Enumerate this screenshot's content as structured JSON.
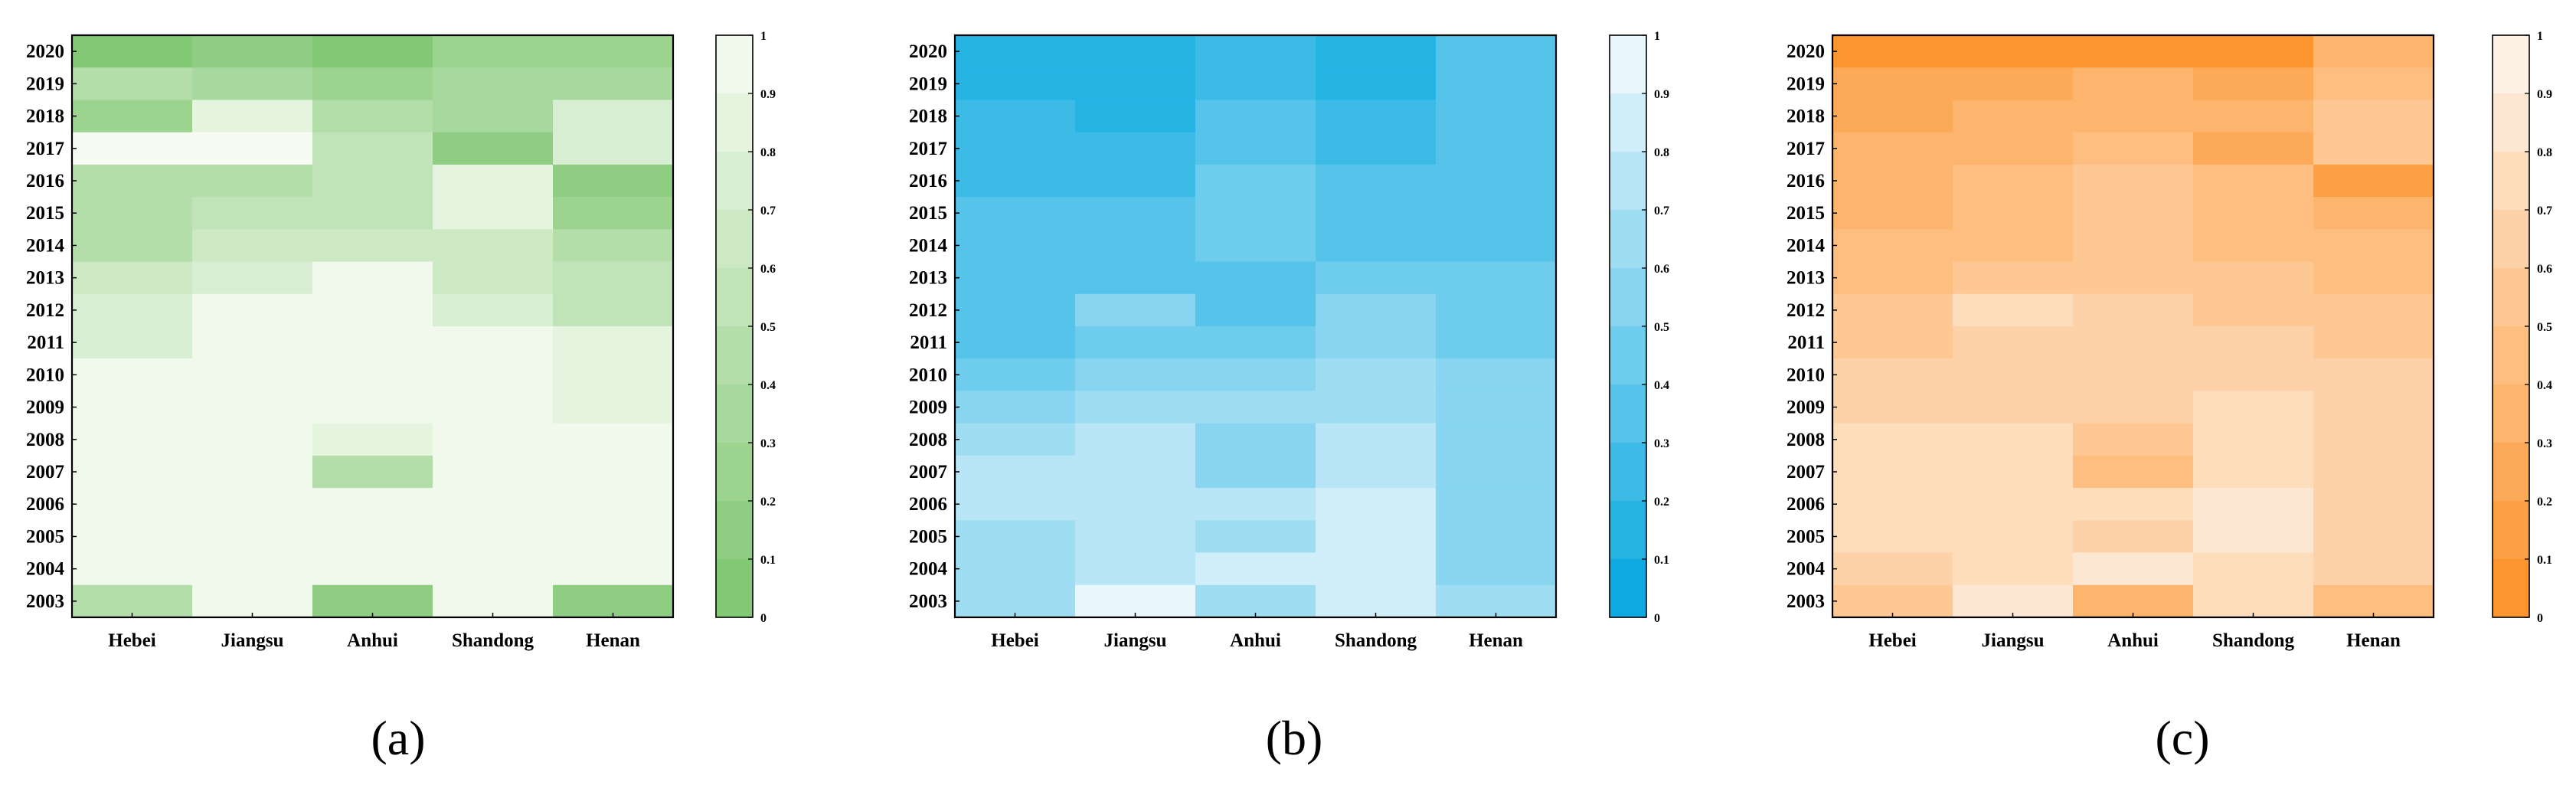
{
  "charts": [
    {
      "type": "heatmap",
      "panel_label": "(a)",
      "colormap": "greens",
      "colorscale": [
        "#7cc56e",
        "#f7fcf3"
      ],
      "x": [
        "Hebei",
        "Jiangsu",
        "Anhui",
        "Shandong",
        "Henan"
      ],
      "y": [
        "2020",
        "2019",
        "2018",
        "2017",
        "2016",
        "2015",
        "2014",
        "2013",
        "2012",
        "2011",
        "2010",
        "2009",
        "2008",
        "2007",
        "2006",
        "2005",
        "2004",
        "2003"
      ],
      "values": [
        [
          0.05,
          0.15,
          0.05,
          0.25,
          0.25
        ],
        [
          0.45,
          0.35,
          0.25,
          0.35,
          0.35
        ],
        [
          0.25,
          0.85,
          0.45,
          0.35,
          0.75
        ],
        [
          1.0,
          1.0,
          0.55,
          0.15,
          0.75
        ],
        [
          0.45,
          0.45,
          0.55,
          0.85,
          0.15
        ],
        [
          0.45,
          0.55,
          0.55,
          0.85,
          0.25
        ],
        [
          0.45,
          0.65,
          0.65,
          0.65,
          0.45
        ],
        [
          0.65,
          0.75,
          0.95,
          0.65,
          0.55
        ],
        [
          0.75,
          0.95,
          0.95,
          0.75,
          0.55
        ],
        [
          0.75,
          0.95,
          0.95,
          0.95,
          0.85
        ],
        [
          0.95,
          0.95,
          0.95,
          0.95,
          0.85
        ],
        [
          0.95,
          0.95,
          0.95,
          0.95,
          0.85
        ],
        [
          0.95,
          0.95,
          0.85,
          0.95,
          0.95
        ],
        [
          0.95,
          0.95,
          0.45,
          0.95,
          0.95
        ],
        [
          0.95,
          0.95,
          0.95,
          0.95,
          0.95
        ],
        [
          0.95,
          0.95,
          0.95,
          0.95,
          0.95
        ],
        [
          0.95,
          0.95,
          0.95,
          0.95,
          0.95
        ],
        [
          0.45,
          0.95,
          0.15,
          0.95,
          0.15
        ]
      ],
      "colorbar": {
        "min": 0,
        "max": 1,
        "ticks": [
          "0",
          "0.1",
          "0.2",
          "0.3",
          "0.4",
          "0.5",
          "0.6",
          "0.7",
          "0.8",
          "0.9",
          "1"
        ]
      }
    },
    {
      "type": "heatmap",
      "panel_label": "(b)",
      "colormap": "blues",
      "colorscale": [
        "#00a6e0",
        "#f5fbfd"
      ],
      "x": [
        "Hebei",
        "Jiangsu",
        "Anhui",
        "Shandong",
        "Henan"
      ],
      "y": [
        "2020",
        "2019",
        "2018",
        "2017",
        "2016",
        "2015",
        "2014",
        "2013",
        "2012",
        "2011",
        "2010",
        "2009",
        "2008",
        "2007",
        "2006",
        "2005",
        "2004",
        "2003"
      ],
      "values": [
        [
          0.15,
          0.15,
          0.25,
          0.15,
          0.35
        ],
        [
          0.15,
          0.15,
          0.25,
          0.15,
          0.35
        ],
        [
          0.25,
          0.15,
          0.35,
          0.25,
          0.35
        ],
        [
          0.25,
          0.25,
          0.35,
          0.25,
          0.35
        ],
        [
          0.25,
          0.25,
          0.45,
          0.35,
          0.35
        ],
        [
          0.35,
          0.35,
          0.45,
          0.35,
          0.35
        ],
        [
          0.35,
          0.35,
          0.45,
          0.35,
          0.35
        ],
        [
          0.35,
          0.35,
          0.35,
          0.45,
          0.45
        ],
        [
          0.35,
          0.55,
          0.35,
          0.55,
          0.45
        ],
        [
          0.35,
          0.45,
          0.45,
          0.55,
          0.45
        ],
        [
          0.45,
          0.55,
          0.55,
          0.65,
          0.55
        ],
        [
          0.55,
          0.65,
          0.65,
          0.65,
          0.55
        ],
        [
          0.65,
          0.75,
          0.55,
          0.75,
          0.55
        ],
        [
          0.75,
          0.75,
          0.55,
          0.75,
          0.55
        ],
        [
          0.75,
          0.75,
          0.75,
          0.85,
          0.55
        ],
        [
          0.65,
          0.75,
          0.65,
          0.85,
          0.55
        ],
        [
          0.65,
          0.75,
          0.85,
          0.85,
          0.55
        ],
        [
          0.65,
          0.95,
          0.65,
          0.85,
          0.65
        ]
      ],
      "colorbar": {
        "min": 0,
        "max": 1,
        "ticks": [
          "0",
          "0.1",
          "0.2",
          "0.3",
          "0.4",
          "0.5",
          "0.6",
          "0.7",
          "0.8",
          "0.9",
          "1"
        ]
      }
    },
    {
      "type": "heatmap",
      "panel_label": "(c)",
      "colormap": "oranges",
      "colorscale": [
        "#fd9025",
        "#fef6f0"
      ],
      "x": [
        "Hebei",
        "Jiangsu",
        "Anhui",
        "Shandong",
        "Henan"
      ],
      "y": [
        "2020",
        "2019",
        "2018",
        "2017",
        "2016",
        "2015",
        "2014",
        "2013",
        "2012",
        "2011",
        "2010",
        "2009",
        "2008",
        "2007",
        "2006",
        "2005",
        "2004",
        "2003"
      ],
      "values": [
        [
          0.05,
          0.05,
          0.05,
          0.05,
          0.35
        ],
        [
          0.25,
          0.25,
          0.35,
          0.25,
          0.45
        ],
        [
          0.25,
          0.35,
          0.35,
          0.35,
          0.55
        ],
        [
          0.35,
          0.35,
          0.45,
          0.25,
          0.55
        ],
        [
          0.35,
          0.45,
          0.55,
          0.45,
          0.15
        ],
        [
          0.35,
          0.45,
          0.55,
          0.45,
          0.35
        ],
        [
          0.45,
          0.45,
          0.55,
          0.45,
          0.45
        ],
        [
          0.45,
          0.55,
          0.55,
          0.55,
          0.45
        ],
        [
          0.55,
          0.75,
          0.65,
          0.55,
          0.55
        ],
        [
          0.55,
          0.65,
          0.65,
          0.65,
          0.55
        ],
        [
          0.65,
          0.65,
          0.65,
          0.65,
          0.65
        ],
        [
          0.65,
          0.65,
          0.65,
          0.75,
          0.65
        ],
        [
          0.75,
          0.75,
          0.55,
          0.75,
          0.65
        ],
        [
          0.75,
          0.75,
          0.45,
          0.75,
          0.65
        ],
        [
          0.75,
          0.75,
          0.75,
          0.85,
          0.65
        ],
        [
          0.75,
          0.75,
          0.65,
          0.85,
          0.65
        ],
        [
          0.65,
          0.75,
          0.85,
          0.75,
          0.65
        ],
        [
          0.55,
          0.85,
          0.35,
          0.75,
          0.45
        ]
      ],
      "colorbar": {
        "min": 0,
        "max": 1,
        "ticks": [
          "0",
          "0.1",
          "0.2",
          "0.3",
          "0.4",
          "0.5",
          "0.6",
          "0.7",
          "0.8",
          "0.9",
          "1"
        ]
      }
    }
  ]
}
